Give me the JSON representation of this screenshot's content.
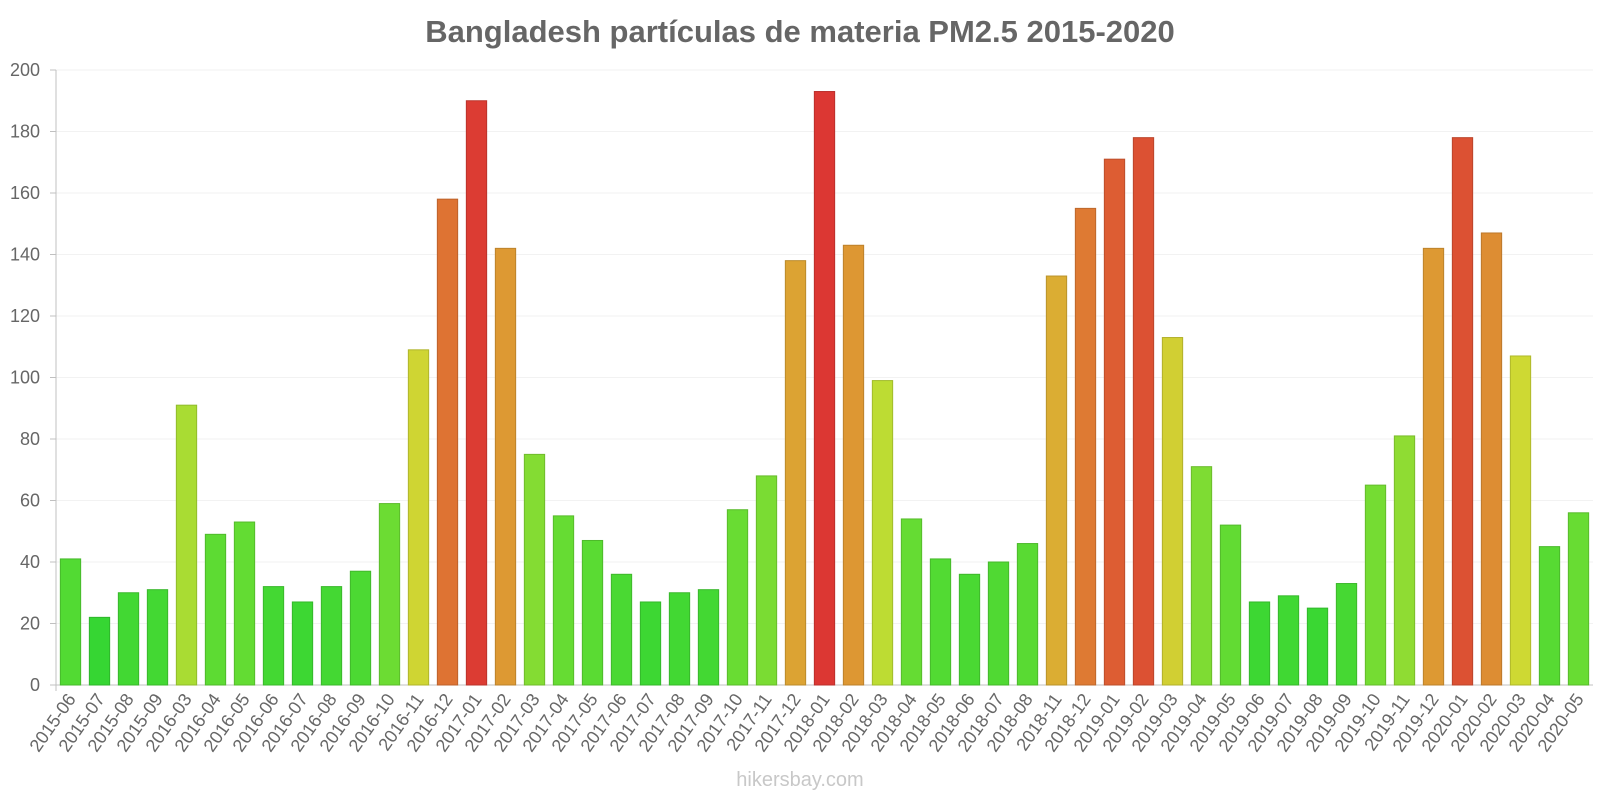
{
  "chart_data": {
    "type": "bar",
    "title": "Bangladesh partículas de materia PM2.5 2015-2020",
    "xlabel": "",
    "ylabel": "",
    "ylim": [
      0,
      200
    ],
    "yticks": [
      0,
      20,
      40,
      60,
      80,
      100,
      120,
      140,
      160,
      180,
      200
    ],
    "grid": true,
    "categories": [
      "2015-06",
      "2015-07",
      "2015-08",
      "2015-09",
      "2016-03",
      "2016-04",
      "2016-05",
      "2016-06",
      "2016-07",
      "2016-08",
      "2016-09",
      "2016-10",
      "2016-11",
      "2016-12",
      "2017-01",
      "2017-02",
      "2017-03",
      "2017-04",
      "2017-05",
      "2017-06",
      "2017-07",
      "2017-08",
      "2017-09",
      "2017-10",
      "2017-11",
      "2017-12",
      "2018-01",
      "2018-02",
      "2018-03",
      "2018-04",
      "2018-05",
      "2018-06",
      "2018-07",
      "2018-08",
      "2018-11",
      "2018-12",
      "2019-01",
      "2019-02",
      "2019-03",
      "2019-04",
      "2019-05",
      "2019-06",
      "2019-07",
      "2019-08",
      "2019-09",
      "2019-10",
      "2019-11",
      "2019-12",
      "2020-01",
      "2020-02",
      "2020-03",
      "2020-04",
      "2020-05"
    ],
    "values": [
      41,
      22,
      30,
      31,
      91,
      49,
      53,
      32,
      27,
      32,
      37,
      59,
      109,
      158,
      190,
      142,
      75,
      55,
      47,
      36,
      27,
      30,
      31,
      57,
      68,
      138,
      193,
      143,
      99,
      54,
      41,
      36,
      40,
      46,
      133,
      155,
      171,
      178,
      113,
      71,
      52,
      27,
      29,
      25,
      33,
      65,
      81,
      142,
      178,
      147,
      107,
      45,
      56
    ]
  },
  "watermark": "hikersbay.com"
}
